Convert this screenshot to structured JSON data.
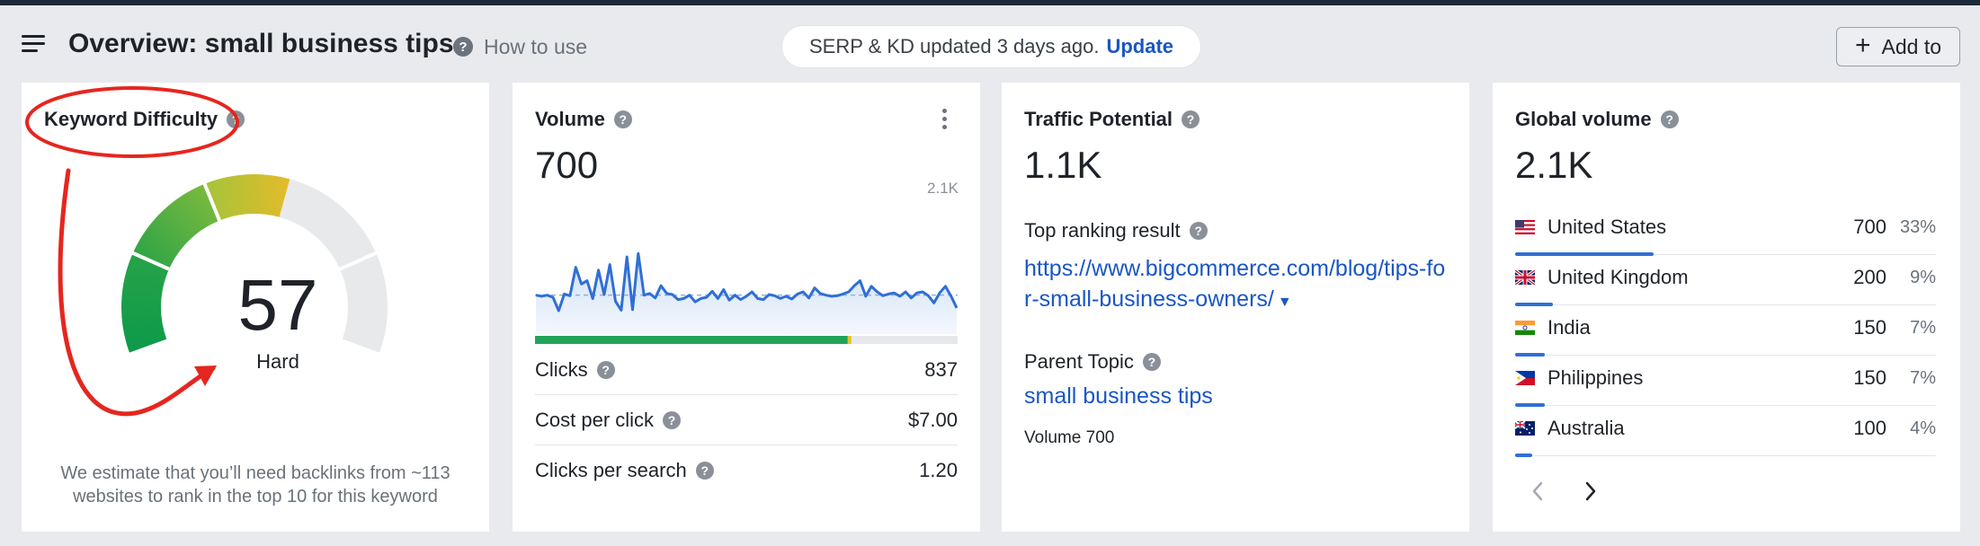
{
  "header": {
    "title": "Overview: small business tips",
    "how_to_use": "How to use",
    "update_notice": "SERP & KD updated 3 days ago.",
    "update_link": "Update",
    "add_to": "Add to"
  },
  "icons": {
    "menu": "hamburger-menu-icon",
    "help": "question-circle-icon",
    "plus": "plus-icon",
    "more": "vertical-dots-icon",
    "caret": "caret-down-icon",
    "prev": "chevron-left-icon",
    "next": "chevron-right-icon"
  },
  "colors": {
    "link": "#1a56c4",
    "accent_blue": "#2f6fd6",
    "annotation_red": "#e5261f"
  },
  "keyword_difficulty": {
    "title": "Keyword Difficulty",
    "value": "57",
    "score": 57,
    "label": "Hard",
    "description": "We estimate that you’ll need backlinks from ~113 websites to rank in the top 10 for this keyword"
  },
  "volume": {
    "title": "Volume",
    "value": "700",
    "chart_max_label": "2.1K",
    "clicks_split": {
      "organic_pct": 0.74,
      "paid_pct": 0.008
    },
    "metrics": [
      {
        "label": "Clicks",
        "value": "837"
      },
      {
        "label": "Cost per click",
        "value": "$7.00"
      },
      {
        "label": "Clicks per search",
        "value": "1.20"
      }
    ]
  },
  "chart_data": {
    "type": "line",
    "title": "",
    "xlabel": "",
    "ylabel": "",
    "ylim": [
      0,
      2100
    ],
    "y_max_label": "2.1K",
    "average_line": 700,
    "series": [
      {
        "values": [
          700,
          680,
          700,
          660,
          420,
          720,
          690,
          1200,
          900,
          960,
          640,
          1150,
          710,
          1250,
          590,
          430,
          1390,
          440,
          1450,
          700,
          730,
          650,
          870,
          730,
          710,
          620,
          640,
          700,
          580,
          640,
          660,
          770,
          640,
          800,
          610,
          700,
          620,
          680,
          760,
          640,
          620,
          710,
          690,
          640,
          680,
          630,
          720,
          760,
          650,
          830,
          730,
          700,
          680,
          690,
          720,
          760,
          870,
          960,
          680,
          860,
          760,
          690,
          720,
          740,
          680,
          760,
          650,
          740,
          760,
          690,
          560,
          740,
          860,
          680,
          470
        ]
      }
    ]
  },
  "traffic_potential": {
    "title": "Traffic Potential",
    "value": "1.1K",
    "top_result_label": "Top ranking result",
    "top_result_url": "https://www.bigcommerce.com/blog/tips-for-small-business-owners/",
    "parent_topic_label": "Parent Topic",
    "parent_topic": "small business tips",
    "parent_volume": "Volume 700"
  },
  "global_volume": {
    "title": "Global volume",
    "value": "2.1K",
    "countries": [
      {
        "name": "United States",
        "volume": "700",
        "pct": "33%",
        "share": 0.33,
        "flag": "us-flag-icon"
      },
      {
        "name": "United Kingdom",
        "volume": "200",
        "pct": "9%",
        "share": 0.09,
        "flag": "gb-flag-icon"
      },
      {
        "name": "India",
        "volume": "150",
        "pct": "7%",
        "share": 0.07,
        "flag": "in-flag-icon"
      },
      {
        "name": "Philippines",
        "volume": "150",
        "pct": "7%",
        "share": 0.07,
        "flag": "ph-flag-icon"
      },
      {
        "name": "Australia",
        "volume": "100",
        "pct": "4%",
        "share": 0.04,
        "flag": "au-flag-icon"
      }
    ]
  }
}
